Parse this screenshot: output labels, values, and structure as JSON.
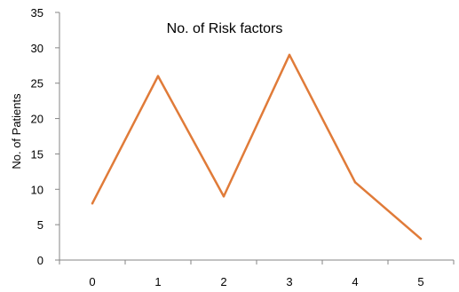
{
  "chart_data": {
    "type": "line",
    "title": "No. of Risk factors",
    "xlabel": "",
    "ylabel": "No. of Patients",
    "categories": [
      "0",
      "1",
      "2",
      "3",
      "4",
      "5"
    ],
    "series": [
      {
        "values": [
          8,
          26,
          9,
          29,
          11,
          3
        ],
        "color": "#e07b39"
      }
    ],
    "ylim": [
      0,
      35
    ],
    "yticks": [
      0,
      5,
      10,
      15,
      20,
      25,
      30,
      35
    ],
    "grid": false,
    "legend": "none"
  }
}
